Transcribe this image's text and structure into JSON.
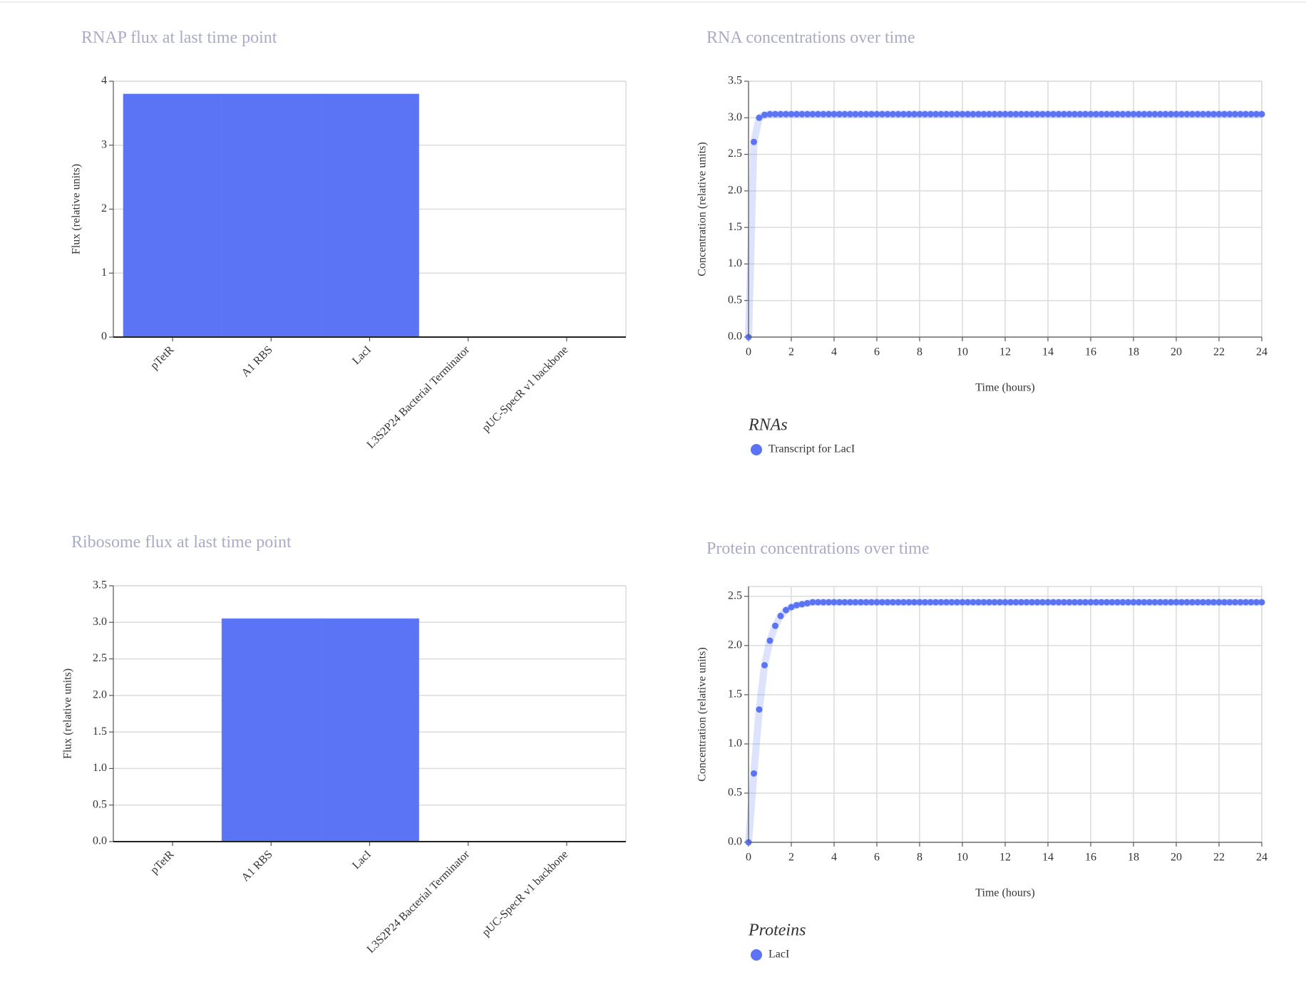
{
  "chart_data": [
    {
      "type": "bar",
      "title": "RNAP flux at last time point",
      "ylabel": "Flux (relative units)",
      "categories": [
        "pTetR",
        "A1 RBS",
        "LacI",
        "L3S2P24 Bacterial Terminator",
        "pUC-SpecR v1 backbone"
      ],
      "values": [
        3.8,
        3.8,
        3.8,
        0,
        0
      ],
      "color": "#5b74f5",
      "ylim": [
        0,
        4
      ],
      "yticks": [
        0,
        1,
        2,
        3,
        4
      ],
      "grid": true
    },
    {
      "type": "line",
      "title": "RNA concentrations over time",
      "xlabel": "Time (hours)",
      "ylabel": "Concentration (relative units)",
      "legend_title": "RNAs",
      "x": [
        0,
        0.25,
        0.5,
        0.75,
        1,
        1.25,
        1.5,
        1.75,
        2,
        2.25,
        2.5,
        2.75,
        3,
        3.25,
        3.5,
        3.75,
        4,
        4.25,
        4.5,
        4.75,
        5,
        5.25,
        5.5,
        5.75,
        6,
        6.25,
        6.5,
        6.75,
        7,
        7.25,
        7.5,
        7.75,
        8,
        8.25,
        8.5,
        8.75,
        9,
        9.25,
        9.5,
        9.75,
        10,
        10.25,
        10.5,
        10.75,
        11,
        11.25,
        11.5,
        11.75,
        12,
        12.25,
        12.5,
        12.75,
        13,
        13.25,
        13.5,
        13.75,
        14,
        14.25,
        14.5,
        14.75,
        15,
        15.25,
        15.5,
        15.75,
        16,
        16.25,
        16.5,
        16.75,
        17,
        17.25,
        17.5,
        17.75,
        18,
        18.25,
        18.5,
        18.75,
        19,
        19.25,
        19.5,
        19.75,
        20,
        20.25,
        20.5,
        20.75,
        21,
        21.25,
        21.5,
        21.75,
        22,
        22.25,
        22.5,
        22.75,
        23,
        23.25,
        23.5,
        23.75,
        24
      ],
      "series": [
        {
          "name": "Transcript for LacI",
          "color": "#5b74f5",
          "values": [
            0,
            2.67,
            3.0,
            3.04,
            3.05,
            3.05,
            3.05,
            3.05,
            3.05,
            3.05,
            3.05,
            3.05,
            3.05,
            3.05,
            3.05,
            3.05,
            3.05,
            3.05,
            3.05,
            3.05,
            3.05,
            3.05,
            3.05,
            3.05,
            3.05,
            3.05,
            3.05,
            3.05,
            3.05,
            3.05,
            3.05,
            3.05,
            3.05,
            3.05,
            3.05,
            3.05,
            3.05,
            3.05,
            3.05,
            3.05,
            3.05,
            3.05,
            3.05,
            3.05,
            3.05,
            3.05,
            3.05,
            3.05,
            3.05,
            3.05,
            3.05,
            3.05,
            3.05,
            3.05,
            3.05,
            3.05,
            3.05,
            3.05,
            3.05,
            3.05,
            3.05,
            3.05,
            3.05,
            3.05,
            3.05,
            3.05,
            3.05,
            3.05,
            3.05,
            3.05,
            3.05,
            3.05,
            3.05,
            3.05,
            3.05,
            3.05,
            3.05,
            3.05,
            3.05,
            3.05,
            3.05,
            3.05,
            3.05,
            3.05,
            3.05,
            3.05,
            3.05,
            3.05,
            3.05,
            3.05,
            3.05,
            3.05,
            3.05,
            3.05,
            3.05,
            3.05,
            3.05
          ]
        }
      ],
      "xlim": [
        0,
        24
      ],
      "xticks": [
        0,
        2,
        4,
        6,
        8,
        10,
        12,
        14,
        16,
        18,
        20,
        22,
        24
      ],
      "ylim": [
        0,
        3.5
      ],
      "yticks": [
        {
          "value": 0,
          "label": "0.0"
        },
        0.5,
        {
          "value": 1,
          "label": "1.0"
        },
        1.5,
        {
          "value": 2,
          "label": "2.0"
        },
        2.5,
        {
          "value": 3,
          "label": "3.0"
        },
        3.5
      ],
      "grid": true
    },
    {
      "type": "bar",
      "title": "Ribosome flux at last time point",
      "ylabel": "Flux (relative units)",
      "categories": [
        "pTetR",
        "A1 RBS",
        "LacI",
        "L3S2P24 Bacterial Terminator",
        "pUC-SpecR v1 backbone"
      ],
      "values": [
        0,
        3.05,
        3.05,
        0,
        0
      ],
      "color": "#5b74f5",
      "ylim": [
        0,
        3.5
      ],
      "yticks": [
        {
          "value": 0,
          "label": "0.0"
        },
        0.5,
        {
          "value": 1,
          "label": "1.0"
        },
        1.5,
        {
          "value": 2,
          "label": "2.0"
        },
        2.5,
        {
          "value": 3,
          "label": "3.0"
        },
        3.5
      ],
      "grid": true
    },
    {
      "type": "line",
      "title": "Protein concentrations over time",
      "xlabel": "Time (hours)",
      "ylabel": "Concentration (relative units)",
      "legend_title": "Proteins",
      "x": [
        0,
        0.25,
        0.5,
        0.75,
        1,
        1.25,
        1.5,
        1.75,
        2,
        2.25,
        2.5,
        2.75,
        3,
        3.25,
        3.5,
        3.75,
        4,
        4.25,
        4.5,
        4.75,
        5,
        5.25,
        5.5,
        5.75,
        6,
        6.25,
        6.5,
        6.75,
        7,
        7.25,
        7.5,
        7.75,
        8,
        8.25,
        8.5,
        8.75,
        9,
        9.25,
        9.5,
        9.75,
        10,
        10.25,
        10.5,
        10.75,
        11,
        11.25,
        11.5,
        11.75,
        12,
        12.25,
        12.5,
        12.75,
        13,
        13.25,
        13.5,
        13.75,
        14,
        14.25,
        14.5,
        14.75,
        15,
        15.25,
        15.5,
        15.75,
        16,
        16.25,
        16.5,
        16.75,
        17,
        17.25,
        17.5,
        17.75,
        18,
        18.25,
        18.5,
        18.75,
        19,
        19.25,
        19.5,
        19.75,
        20,
        20.25,
        20.5,
        20.75,
        21,
        21.25,
        21.5,
        21.75,
        22,
        22.25,
        22.5,
        22.75,
        23,
        23.25,
        23.5,
        23.75,
        24
      ],
      "series": [
        {
          "name": "LacI",
          "color": "#5b74f5",
          "values": [
            0,
            0.7,
            1.35,
            1.8,
            2.05,
            2.2,
            2.3,
            2.36,
            2.39,
            2.41,
            2.42,
            2.43,
            2.44,
            2.44,
            2.44,
            2.44,
            2.44,
            2.44,
            2.44,
            2.44,
            2.44,
            2.44,
            2.44,
            2.44,
            2.44,
            2.44,
            2.44,
            2.44,
            2.44,
            2.44,
            2.44,
            2.44,
            2.44,
            2.44,
            2.44,
            2.44,
            2.44,
            2.44,
            2.44,
            2.44,
            2.44,
            2.44,
            2.44,
            2.44,
            2.44,
            2.44,
            2.44,
            2.44,
            2.44,
            2.44,
            2.44,
            2.44,
            2.44,
            2.44,
            2.44,
            2.44,
            2.44,
            2.44,
            2.44,
            2.44,
            2.44,
            2.44,
            2.44,
            2.44,
            2.44,
            2.44,
            2.44,
            2.44,
            2.44,
            2.44,
            2.44,
            2.44,
            2.44,
            2.44,
            2.44,
            2.44,
            2.44,
            2.44,
            2.44,
            2.44,
            2.44,
            2.44,
            2.44,
            2.44,
            2.44,
            2.44,
            2.44,
            2.44,
            2.44,
            2.44,
            2.44,
            2.44,
            2.44,
            2.44,
            2.44,
            2.44,
            2.44
          ]
        }
      ],
      "xlim": [
        0,
        24
      ],
      "xticks": [
        0,
        2,
        4,
        6,
        8,
        10,
        12,
        14,
        16,
        18,
        20,
        22,
        24
      ],
      "ylim": [
        0,
        2.6
      ],
      "yticks": [
        {
          "value": 0,
          "label": "0.0"
        },
        0.5,
        {
          "value": 1,
          "label": "1.0"
        },
        1.5,
        {
          "value": 2,
          "label": "2.0"
        },
        2.5
      ],
      "grid": true
    }
  ]
}
